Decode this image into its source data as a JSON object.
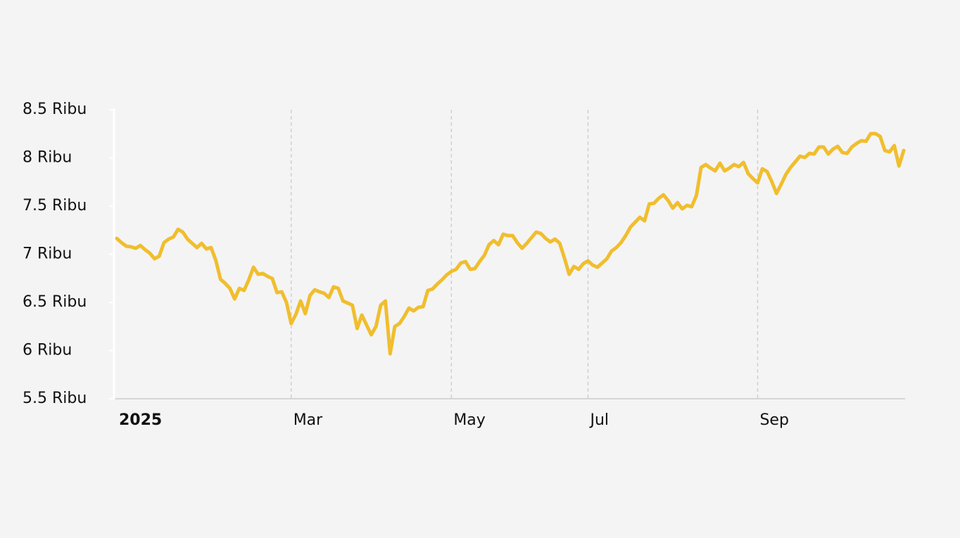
{
  "chart_data": {
    "type": "line",
    "categories": [
      "2025",
      null,
      null,
      null,
      null,
      null,
      null,
      null,
      null,
      null,
      null,
      null,
      null,
      null,
      null,
      null,
      null,
      null,
      null,
      null,
      null,
      null,
      null,
      null,
      null,
      null,
      null,
      null,
      null,
      null,
      null,
      null,
      null,
      null,
      null,
      null,
      null,
      "Mar",
      null,
      null,
      null,
      null,
      null,
      null,
      null,
      null,
      null,
      null,
      null,
      null,
      null,
      null,
      null,
      null,
      null,
      null,
      null,
      null,
      null,
      null,
      null,
      null,
      null,
      null,
      null,
      null,
      null,
      null,
      null,
      null,
      null,
      "May",
      null,
      null,
      null,
      null,
      null,
      null,
      null,
      null,
      null,
      null,
      null,
      null,
      null,
      null,
      null,
      null,
      null,
      null,
      null,
      null,
      null,
      null,
      null,
      null,
      null,
      null,
      null,
      null,
      "Jul",
      null,
      null,
      null,
      null,
      null,
      null,
      null,
      null,
      null,
      null,
      null,
      null,
      null,
      null,
      null,
      null,
      null,
      null,
      null,
      null,
      null,
      null,
      null,
      null,
      null,
      null,
      null,
      null,
      null,
      null,
      null,
      null,
      null,
      null,
      null,
      "Sep",
      null,
      null,
      null,
      null,
      null,
      null,
      null,
      null,
      null,
      null,
      null,
      null,
      null,
      null,
      null,
      null,
      null,
      null,
      null,
      null,
      null,
      null,
      null,
      null,
      null,
      null,
      null,
      null,
      null,
      null,
      null
    ],
    "values": [
      7164,
      7120,
      7084,
      7077,
      7062,
      7091,
      7047,
      7011,
      6953,
      6980,
      7120,
      7157,
      7179,
      7259,
      7230,
      7157,
      7113,
      7069,
      7113,
      7055,
      7069,
      6938,
      6741,
      6697,
      6646,
      6536,
      6646,
      6624,
      6734,
      6865,
      6792,
      6800,
      6770,
      6748,
      6602,
      6610,
      6500,
      6281,
      6376,
      6515,
      6383,
      6573,
      6631,
      6610,
      6595,
      6551,
      6661,
      6646,
      6515,
      6493,
      6471,
      6230,
      6369,
      6266,
      6164,
      6251,
      6471,
      6515,
      5967,
      6251,
      6281,
      6354,
      6442,
      6412,
      6449,
      6456,
      6624,
      6639,
      6690,
      6734,
      6785,
      6821,
      6843,
      6909,
      6924,
      6843,
      6851,
      6924,
      6989,
      7099,
      7142,
      7099,
      7208,
      7193,
      7193,
      7120,
      7062,
      7113,
      7172,
      7230,
      7215,
      7164,
      7128,
      7157,
      7113,
      6960,
      6792,
      6873,
      6843,
      6902,
      6931,
      6887,
      6865,
      6909,
      6953,
      7033,
      7069,
      7120,
      7193,
      7281,
      7332,
      7383,
      7347,
      7522,
      7529,
      7580,
      7617,
      7558,
      7478,
      7536,
      7471,
      7507,
      7493,
      7609,
      7901,
      7931,
      7894,
      7865,
      7945,
      7865,
      7894,
      7931,
      7909,
      7953,
      7836,
      7785,
      7741,
      7887,
      7858,
      7755,
      7631,
      7726,
      7829,
      7901,
      7960,
      8018,
      8004,
      8047,
      8040,
      8113,
      8113,
      8040,
      8091,
      8120,
      8055,
      8047,
      8113,
      8150,
      8179,
      8172,
      8252,
      8252,
      8223,
      8077,
      8062,
      8128,
      7916,
      8077
    ],
    "color": "#f0be2e",
    "ylim": [
      5500,
      8500
    ],
    "yticks": [
      {
        "value": 5500,
        "label": "5.5 Ribu"
      },
      {
        "value": 6000,
        "label": "6 Ribu"
      },
      {
        "value": 6500,
        "label": "6.5 Ribu"
      },
      {
        "value": 7000,
        "label": "7 Ribu"
      },
      {
        "value": 7500,
        "label": "7.5 Ribu"
      },
      {
        "value": 8000,
        "label": "8 Ribu"
      },
      {
        "value": 8500,
        "label": "8.5 Ribu"
      }
    ],
    "grid": true
  }
}
